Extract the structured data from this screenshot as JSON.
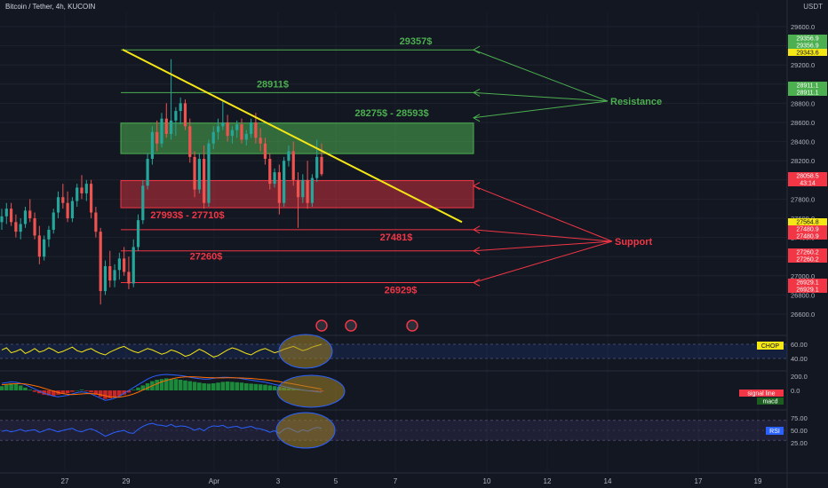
{
  "header": {
    "symbol_title": "Bitcoin / Tether, 4h, KUCOIN",
    "currency": "USDT"
  },
  "colors": {
    "background": "#131722",
    "up": "#26a69a",
    "down": "#ef5350",
    "resistance": "#4caf50",
    "support": "#f23645",
    "trendline": "#f5e616",
    "chop_line": "#f5e616",
    "rsi_line": "#2962ff"
  },
  "chart_data": [
    {
      "type": "candlestick",
      "price_axis": {
        "range": [
          26480,
          29720
        ],
        "ticks": [
          "29600.0",
          "29400.0",
          "29200.0",
          "29000.0",
          "28800.0",
          "28600.0",
          "28400.0",
          "28200.0",
          "28000.0",
          "27800.0",
          "27600.0",
          "27400.0",
          "27200.0",
          "27000.0",
          "26800.0",
          "26600.0"
        ]
      },
      "time_axis": {
        "ticks": [
          "27",
          "29",
          "Apr",
          "3",
          "5",
          "7",
          "10",
          "12",
          "14",
          "17",
          "19"
        ]
      },
      "price_labels": [
        {
          "value": "29356.9",
          "color": "#4caf50"
        },
        {
          "value": "29356.9",
          "color": "#4caf50"
        },
        {
          "value": "29343.6",
          "color": "#f5e616"
        },
        {
          "value": "28911.1",
          "color": "#4caf50"
        },
        {
          "value": "28911.1",
          "color": "#4caf50"
        },
        {
          "value": "28058.5",
          "color": "#f23645"
        },
        {
          "value": "43:14",
          "color": "#f23645"
        },
        {
          "value": "27564.8",
          "color": "#f5e616"
        },
        {
          "value": "27480.9",
          "color": "#f23645"
        },
        {
          "value": "27480.9",
          "color": "#f23645"
        },
        {
          "value": "27260.2",
          "color": "#f23645"
        },
        {
          "value": "27260.2",
          "color": "#f23645"
        },
        {
          "value": "26929.1",
          "color": "#f23645"
        },
        {
          "value": "26929.1",
          "color": "#f23645"
        }
      ],
      "resistance_levels": [
        {
          "value": 29357,
          "label": "29357$"
        },
        {
          "value": 28911,
          "label": "28911$"
        }
      ],
      "resistance_zone": {
        "from": 28275,
        "to": 28593,
        "label": "28275$ - 28593$"
      },
      "support_zone": {
        "from": 27710,
        "to": 27993,
        "label": "27993$ - 27710$"
      },
      "support_levels": [
        {
          "value": 27481,
          "label": "27481$"
        },
        {
          "value": 27260,
          "label": "27260$"
        },
        {
          "value": 26929,
          "label": "26929$"
        }
      ],
      "annotations": {
        "resistance": "Resistance",
        "support": "Support"
      },
      "candles_ohlc": [
        [
          27560,
          27700,
          27480,
          27620
        ],
        [
          27620,
          27760,
          27540,
          27700
        ],
        [
          27700,
          27760,
          27520,
          27560
        ],
        [
          27560,
          27640,
          27400,
          27460
        ],
        [
          27460,
          27600,
          27380,
          27540
        ],
        [
          27540,
          27720,
          27500,
          27680
        ],
        [
          27680,
          27800,
          27560,
          27600
        ],
        [
          27600,
          27660,
          27380,
          27420
        ],
        [
          27420,
          27520,
          27120,
          27200
        ],
        [
          27200,
          27420,
          27160,
          27380
        ],
        [
          27380,
          27520,
          27300,
          27480
        ],
        [
          27480,
          27700,
          27440,
          27660
        ],
        [
          27660,
          27880,
          27600,
          27820
        ],
        [
          27820,
          27960,
          27700,
          27760
        ],
        [
          27760,
          27880,
          27560,
          27600
        ],
        [
          27600,
          27820,
          27560,
          27780
        ],
        [
          27780,
          27960,
          27720,
          27920
        ],
        [
          27920,
          28050,
          27800,
          27860
        ],
        [
          27860,
          28000,
          27780,
          27960
        ],
        [
          27960,
          28000,
          27600,
          27660
        ],
        [
          27660,
          27720,
          27400,
          27460
        ],
        [
          27460,
          27500,
          26700,
          26840
        ],
        [
          26840,
          27160,
          26800,
          27100
        ],
        [
          27100,
          27260,
          26880,
          26950
        ],
        [
          26950,
          27120,
          26880,
          27060
        ],
        [
          27060,
          27240,
          26960,
          27180
        ],
        [
          27180,
          27300,
          27000,
          27040
        ],
        [
          27040,
          27200,
          26860,
          26920
        ],
        [
          26920,
          27380,
          26880,
          27300
        ],
        [
          27300,
          27640,
          27260,
          27580
        ],
        [
          27580,
          28000,
          27540,
          27940
        ],
        [
          27940,
          28280,
          27900,
          28220
        ],
        [
          28220,
          28560,
          28160,
          28500
        ],
        [
          28500,
          28620,
          28300,
          28380
        ],
        [
          28380,
          28700,
          28340,
          28640
        ],
        [
          28640,
          28800,
          28440,
          28480
        ],
        [
          28480,
          29260,
          28420,
          28620
        ],
        [
          28620,
          28760,
          28460,
          28720
        ],
        [
          28720,
          28860,
          28580,
          28800
        ],
        [
          28800,
          28840,
          28520,
          28560
        ],
        [
          28560,
          28640,
          28180,
          28240
        ],
        [
          28240,
          28300,
          27820,
          27900
        ],
        [
          27900,
          28280,
          27860,
          28220
        ],
        [
          28220,
          28360,
          27700,
          27760
        ],
        [
          27760,
          28420,
          27720,
          28380
        ],
        [
          28380,
          28560,
          28320,
          28500
        ],
        [
          28500,
          28640,
          28420,
          28560
        ],
        [
          28560,
          28820,
          28520,
          28600
        ],
        [
          28600,
          28680,
          28400,
          28460
        ],
        [
          28460,
          28560,
          28380,
          28520
        ],
        [
          28520,
          28620,
          28440,
          28580
        ],
        [
          28580,
          28640,
          28380,
          28420
        ],
        [
          28420,
          28520,
          28360,
          28480
        ],
        [
          28480,
          28640,
          28440,
          28600
        ],
        [
          28600,
          28700,
          28380,
          28440
        ],
        [
          28440,
          28540,
          28300,
          28380
        ],
        [
          28380,
          28440,
          28160,
          28220
        ],
        [
          28220,
          28280,
          27900,
          27960
        ],
        [
          27960,
          28120,
          27920,
          28080
        ],
        [
          28080,
          28160,
          27640,
          27760
        ],
        [
          27760,
          28240,
          27720,
          28200
        ],
        [
          28200,
          28360,
          28140,
          28300
        ],
        [
          28300,
          28400,
          27940,
          28000
        ],
        [
          28000,
          28080,
          27500,
          27820
        ],
        [
          27820,
          28060,
          27760,
          28000
        ],
        [
          28000,
          28200,
          27700,
          27760
        ],
        [
          27760,
          28060,
          27720,
          28020
        ],
        [
          28020,
          28420,
          27980,
          28240
        ],
        [
          28240,
          28380,
          28040,
          28060
        ]
      ]
    },
    {
      "type": "line",
      "indicator": "CHOP",
      "label": "CHOP",
      "ticks": [
        "60.00",
        "40.00"
      ],
      "values": [
        52,
        55,
        48,
        50,
        53,
        47,
        50,
        54,
        49,
        51,
        55,
        52,
        48,
        50,
        53,
        56,
        51,
        49,
        52,
        54,
        50,
        47,
        45,
        49,
        52,
        55,
        57,
        53,
        50,
        48,
        51,
        54,
        52,
        49,
        46,
        48,
        52,
        50,
        47,
        43,
        45,
        49,
        53,
        50,
        46,
        42,
        44,
        48,
        52,
        55,
        53,
        50,
        47,
        45,
        49,
        52,
        54,
        51,
        48,
        50,
        53,
        55,
        57,
        54,
        51,
        53,
        56,
        58,
        60
      ]
    },
    {
      "type": "bar",
      "indicator": "MACD",
      "labels": [
        "signal line",
        "macd"
      ],
      "ticks": [
        "200.0",
        "0.0"
      ],
      "histogram": [
        60,
        80,
        100,
        90,
        70,
        40,
        10,
        -20,
        -40,
        -60,
        -70,
        -80,
        -60,
        -50,
        -40,
        -20,
        0,
        10,
        -10,
        -30,
        -60,
        -90,
        -120,
        -110,
        -100,
        -80,
        -60,
        -30,
        10,
        40,
        70,
        100,
        130,
        150,
        160,
        170,
        165,
        160,
        150,
        140,
        130,
        120,
        110,
        100,
        95,
        100,
        110,
        120,
        125,
        120,
        115,
        110,
        100,
        95,
        90,
        85,
        80,
        70,
        60,
        50,
        40,
        30,
        20,
        10,
        5,
        0,
        -5,
        -10,
        -15
      ],
      "macd_line": [
        100,
        110,
        120,
        115,
        100,
        80,
        50,
        20,
        -10,
        -40,
        -60,
        -80,
        -90,
        -80,
        -70,
        -50,
        -30,
        -20,
        -30,
        -50,
        -80,
        -110,
        -140,
        -130,
        -110,
        -80,
        -40,
        0,
        40,
        80,
        120,
        160,
        190,
        210,
        220,
        225,
        220,
        215,
        210,
        200,
        185,
        175,
        165,
        160,
        160,
        170,
        180,
        185,
        185,
        180,
        175,
        165,
        155,
        145,
        135,
        125,
        115,
        100,
        85,
        70,
        55,
        40,
        25,
        15,
        5,
        -5,
        -10,
        -20,
        -25
      ],
      "signal_line": [
        80,
        85,
        90,
        95,
        95,
        90,
        80,
        65,
        50,
        30,
        10,
        -10,
        -30,
        -45,
        -55,
        -60,
        -55,
        -50,
        -45,
        -45,
        -50,
        -60,
        -75,
        -90,
        -95,
        -95,
        -85,
        -70,
        -50,
        -25,
        5,
        35,
        65,
        95,
        120,
        140,
        160,
        175,
        185,
        190,
        192,
        190,
        187,
        183,
        180,
        178,
        177,
        177,
        178,
        178,
        177,
        175,
        172,
        168,
        163,
        157,
        150,
        142,
        133,
        123,
        113,
        102,
        90,
        78,
        66,
        54,
        42,
        30,
        18
      ]
    },
    {
      "type": "line",
      "indicator": "RSI",
      "label": "RSI",
      "ticks": [
        "75.00",
        "50.00",
        "25.00"
      ],
      "values": [
        48,
        50,
        47,
        49,
        52,
        48,
        50,
        51,
        46,
        49,
        53,
        50,
        47,
        50,
        52,
        54,
        49,
        47,
        51,
        53,
        49,
        44,
        38,
        42,
        46,
        48,
        50,
        45,
        44,
        52,
        58,
        62,
        64,
        61,
        60,
        58,
        62,
        57,
        59,
        58,
        55,
        50,
        54,
        49,
        56,
        59,
        58,
        60,
        55,
        57,
        58,
        54,
        56,
        58,
        54,
        53,
        50,
        46,
        49,
        44,
        52,
        55,
        50,
        46,
        51,
        48,
        53,
        56,
        54
      ]
    }
  ]
}
